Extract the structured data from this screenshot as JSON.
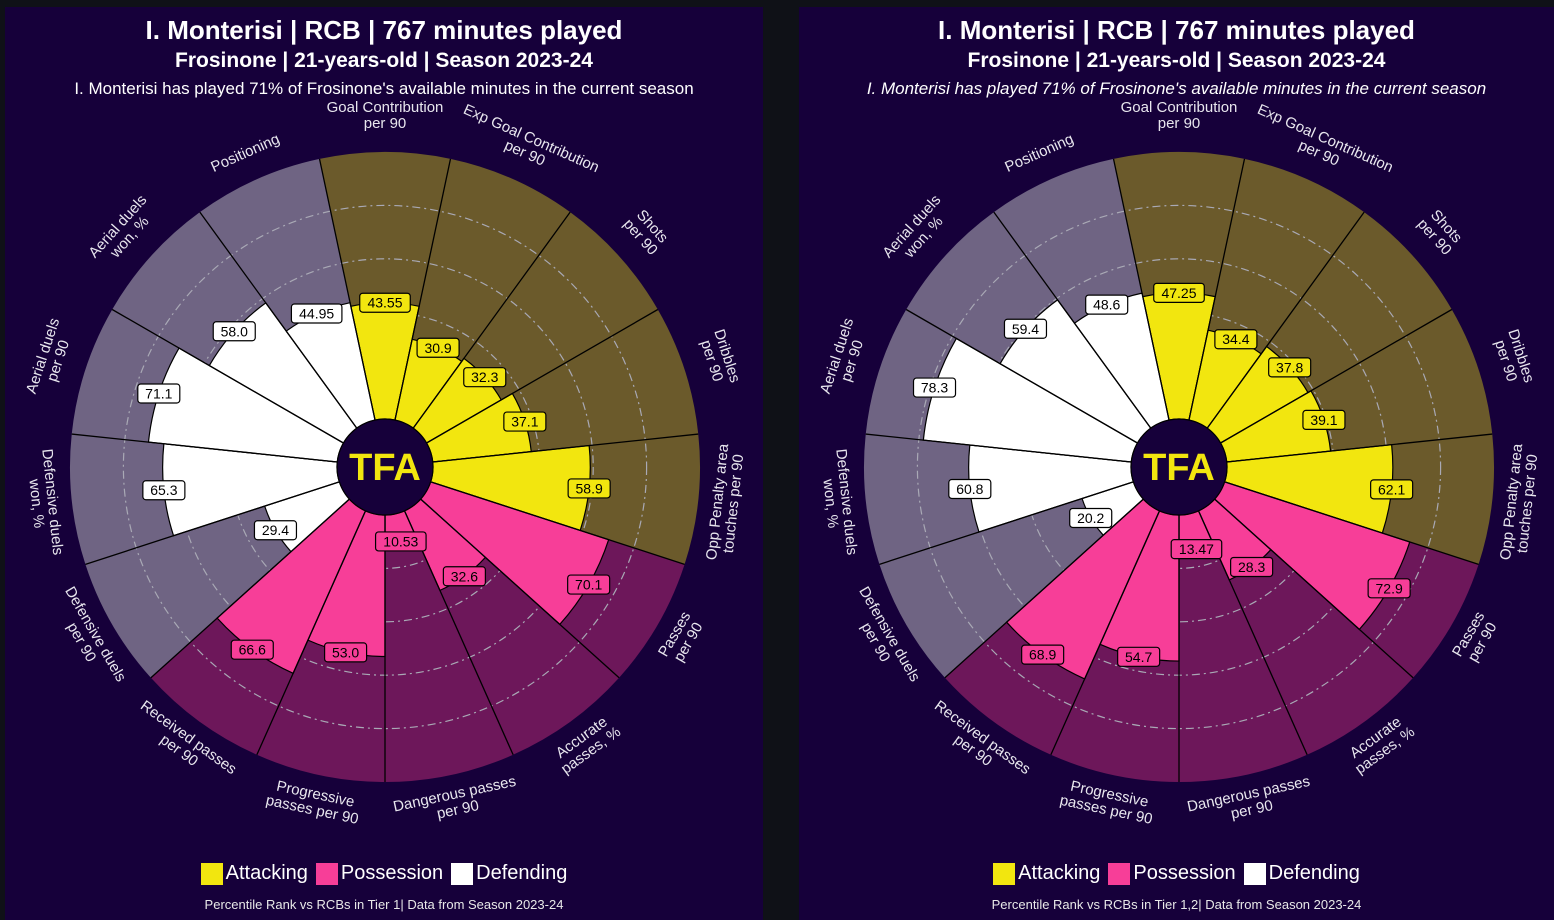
{
  "colors": {
    "attacking": "#f2e60f",
    "possession": "#f73e98",
    "defending": "#ffffff",
    "attacking_bg": "#6b5a2b",
    "possession_bg": "#6d175a",
    "defending_bg": "#6f6483",
    "panel_bg": "#16003a",
    "page_bg": "#0f1117",
    "logo": "#f2e60f"
  },
  "logo_text": "TFA",
  "legend": [
    {
      "label": "Attacking",
      "color_key": "attacking"
    },
    {
      "label": "Possession",
      "color_key": "possession"
    },
    {
      "label": "Defending",
      "color_key": "defending"
    }
  ],
  "chart_data": [
    {
      "type": "radar-pizza",
      "title": "I. Monterisi | RCB | 767 minutes played",
      "subtitle": "Frosinone | 21-years-old | Season 2023-24",
      "caption": "I. Monterisi has played 71% of Frosinone's available minutes in the current season",
      "caption_italic": false,
      "footnote": "Percentile Rank vs RCBs in Tier 1| Data from Season 2023-24",
      "range": [
        0,
        100
      ],
      "gridlines": [
        20,
        40,
        60,
        80
      ],
      "categories": [
        {
          "label": "Goal Contribution\nper 90",
          "group": "attacking",
          "value": 43.55,
          "display": "43.55"
        },
        {
          "label": "Exp Goal Contribution\nper 90",
          "group": "attacking",
          "value": 30.9,
          "display": "30.9"
        },
        {
          "label": "Shots\nper 90",
          "group": "attacking",
          "value": 32.3,
          "display": "32.3"
        },
        {
          "label": "Dribbles\nper 90",
          "group": "attacking",
          "value": 37.1,
          "display": "37.1"
        },
        {
          "label": "Opp Penalty area\ntouches per 90",
          "group": "attacking",
          "value": 58.9,
          "display": "58.9"
        },
        {
          "label": "Passes\nper 90",
          "group": "possession",
          "value": 70.1,
          "display": "70.1"
        },
        {
          "label": "Accurate\npasses, %",
          "group": "possession",
          "value": 32.6,
          "display": "32.6"
        },
        {
          "label": "Dangerous passes\nper 90",
          "group": "possession",
          "value": 10.53,
          "display": "10.53"
        },
        {
          "label": "Progressive\npasses per 90",
          "group": "possession",
          "value": 53.0,
          "display": "53.0"
        },
        {
          "label": "Received passes\nper 90",
          "group": "possession",
          "value": 66.6,
          "display": "66.6"
        },
        {
          "label": "Defensive duels\nper 90",
          "group": "defending",
          "value": 29.4,
          "display": "29.4"
        },
        {
          "label": "Defensive duels\nwon, %",
          "group": "defending",
          "value": 65.3,
          "display": "65.3"
        },
        {
          "label": "Aerial duels\nper 90",
          "group": "defending",
          "value": 71.1,
          "display": "71.1"
        },
        {
          "label": "Aerial duels\nwon, %",
          "group": "defending",
          "value": 58.0,
          "display": "58.0"
        },
        {
          "label": "Positioning",
          "group": "defending",
          "value": 44.95,
          "display": "44.95"
        }
      ]
    },
    {
      "type": "radar-pizza",
      "title": "I. Monterisi | RCB | 767 minutes played",
      "subtitle": "Frosinone | 21-years-old | Season 2023-24",
      "caption": "I. Monterisi has played 71% of Frosinone's available minutes in the current season",
      "caption_italic": true,
      "footnote": "Percentile Rank vs RCBs in Tier 1,2| Data from Season 2023-24",
      "range": [
        0,
        100
      ],
      "gridlines": [
        20,
        40,
        60,
        80
      ],
      "categories": [
        {
          "label": "Goal Contribution\nper 90",
          "group": "attacking",
          "value": 47.25,
          "display": "47.25"
        },
        {
          "label": "Exp Goal Contribution\nper 90",
          "group": "attacking",
          "value": 34.4,
          "display": "34.4"
        },
        {
          "label": "Shots\nper 90",
          "group": "attacking",
          "value": 37.8,
          "display": "37.8"
        },
        {
          "label": "Dribbles\nper 90",
          "group": "attacking",
          "value": 39.1,
          "display": "39.1"
        },
        {
          "label": "Opp Penalty area\ntouches per 90",
          "group": "attacking",
          "value": 62.1,
          "display": "62.1"
        },
        {
          "label": "Passes\nper 90",
          "group": "possession",
          "value": 72.9,
          "display": "72.9"
        },
        {
          "label": "Accurate\npasses, %",
          "group": "possession",
          "value": 28.3,
          "display": "28.3"
        },
        {
          "label": "Dangerous passes\nper 90",
          "group": "possession",
          "value": 13.47,
          "display": "13.47"
        },
        {
          "label": "Progressive\npasses per 90",
          "group": "possession",
          "value": 54.7,
          "display": "54.7"
        },
        {
          "label": "Received passes\nper 90",
          "group": "possession",
          "value": 68.9,
          "display": "68.9"
        },
        {
          "label": "Defensive duels\nper 90",
          "group": "defending",
          "value": 20.2,
          "display": "20.2"
        },
        {
          "label": "Defensive duels\nwon, %",
          "group": "defending",
          "value": 60.8,
          "display": "60.8"
        },
        {
          "label": "Aerial duels\nper 90",
          "group": "defending",
          "value": 78.3,
          "display": "78.3"
        },
        {
          "label": "Aerial duels\nwon, %",
          "group": "defending",
          "value": 59.4,
          "display": "59.4"
        },
        {
          "label": "Positioning",
          "group": "defending",
          "value": 48.6,
          "display": "48.6"
        }
      ]
    }
  ]
}
